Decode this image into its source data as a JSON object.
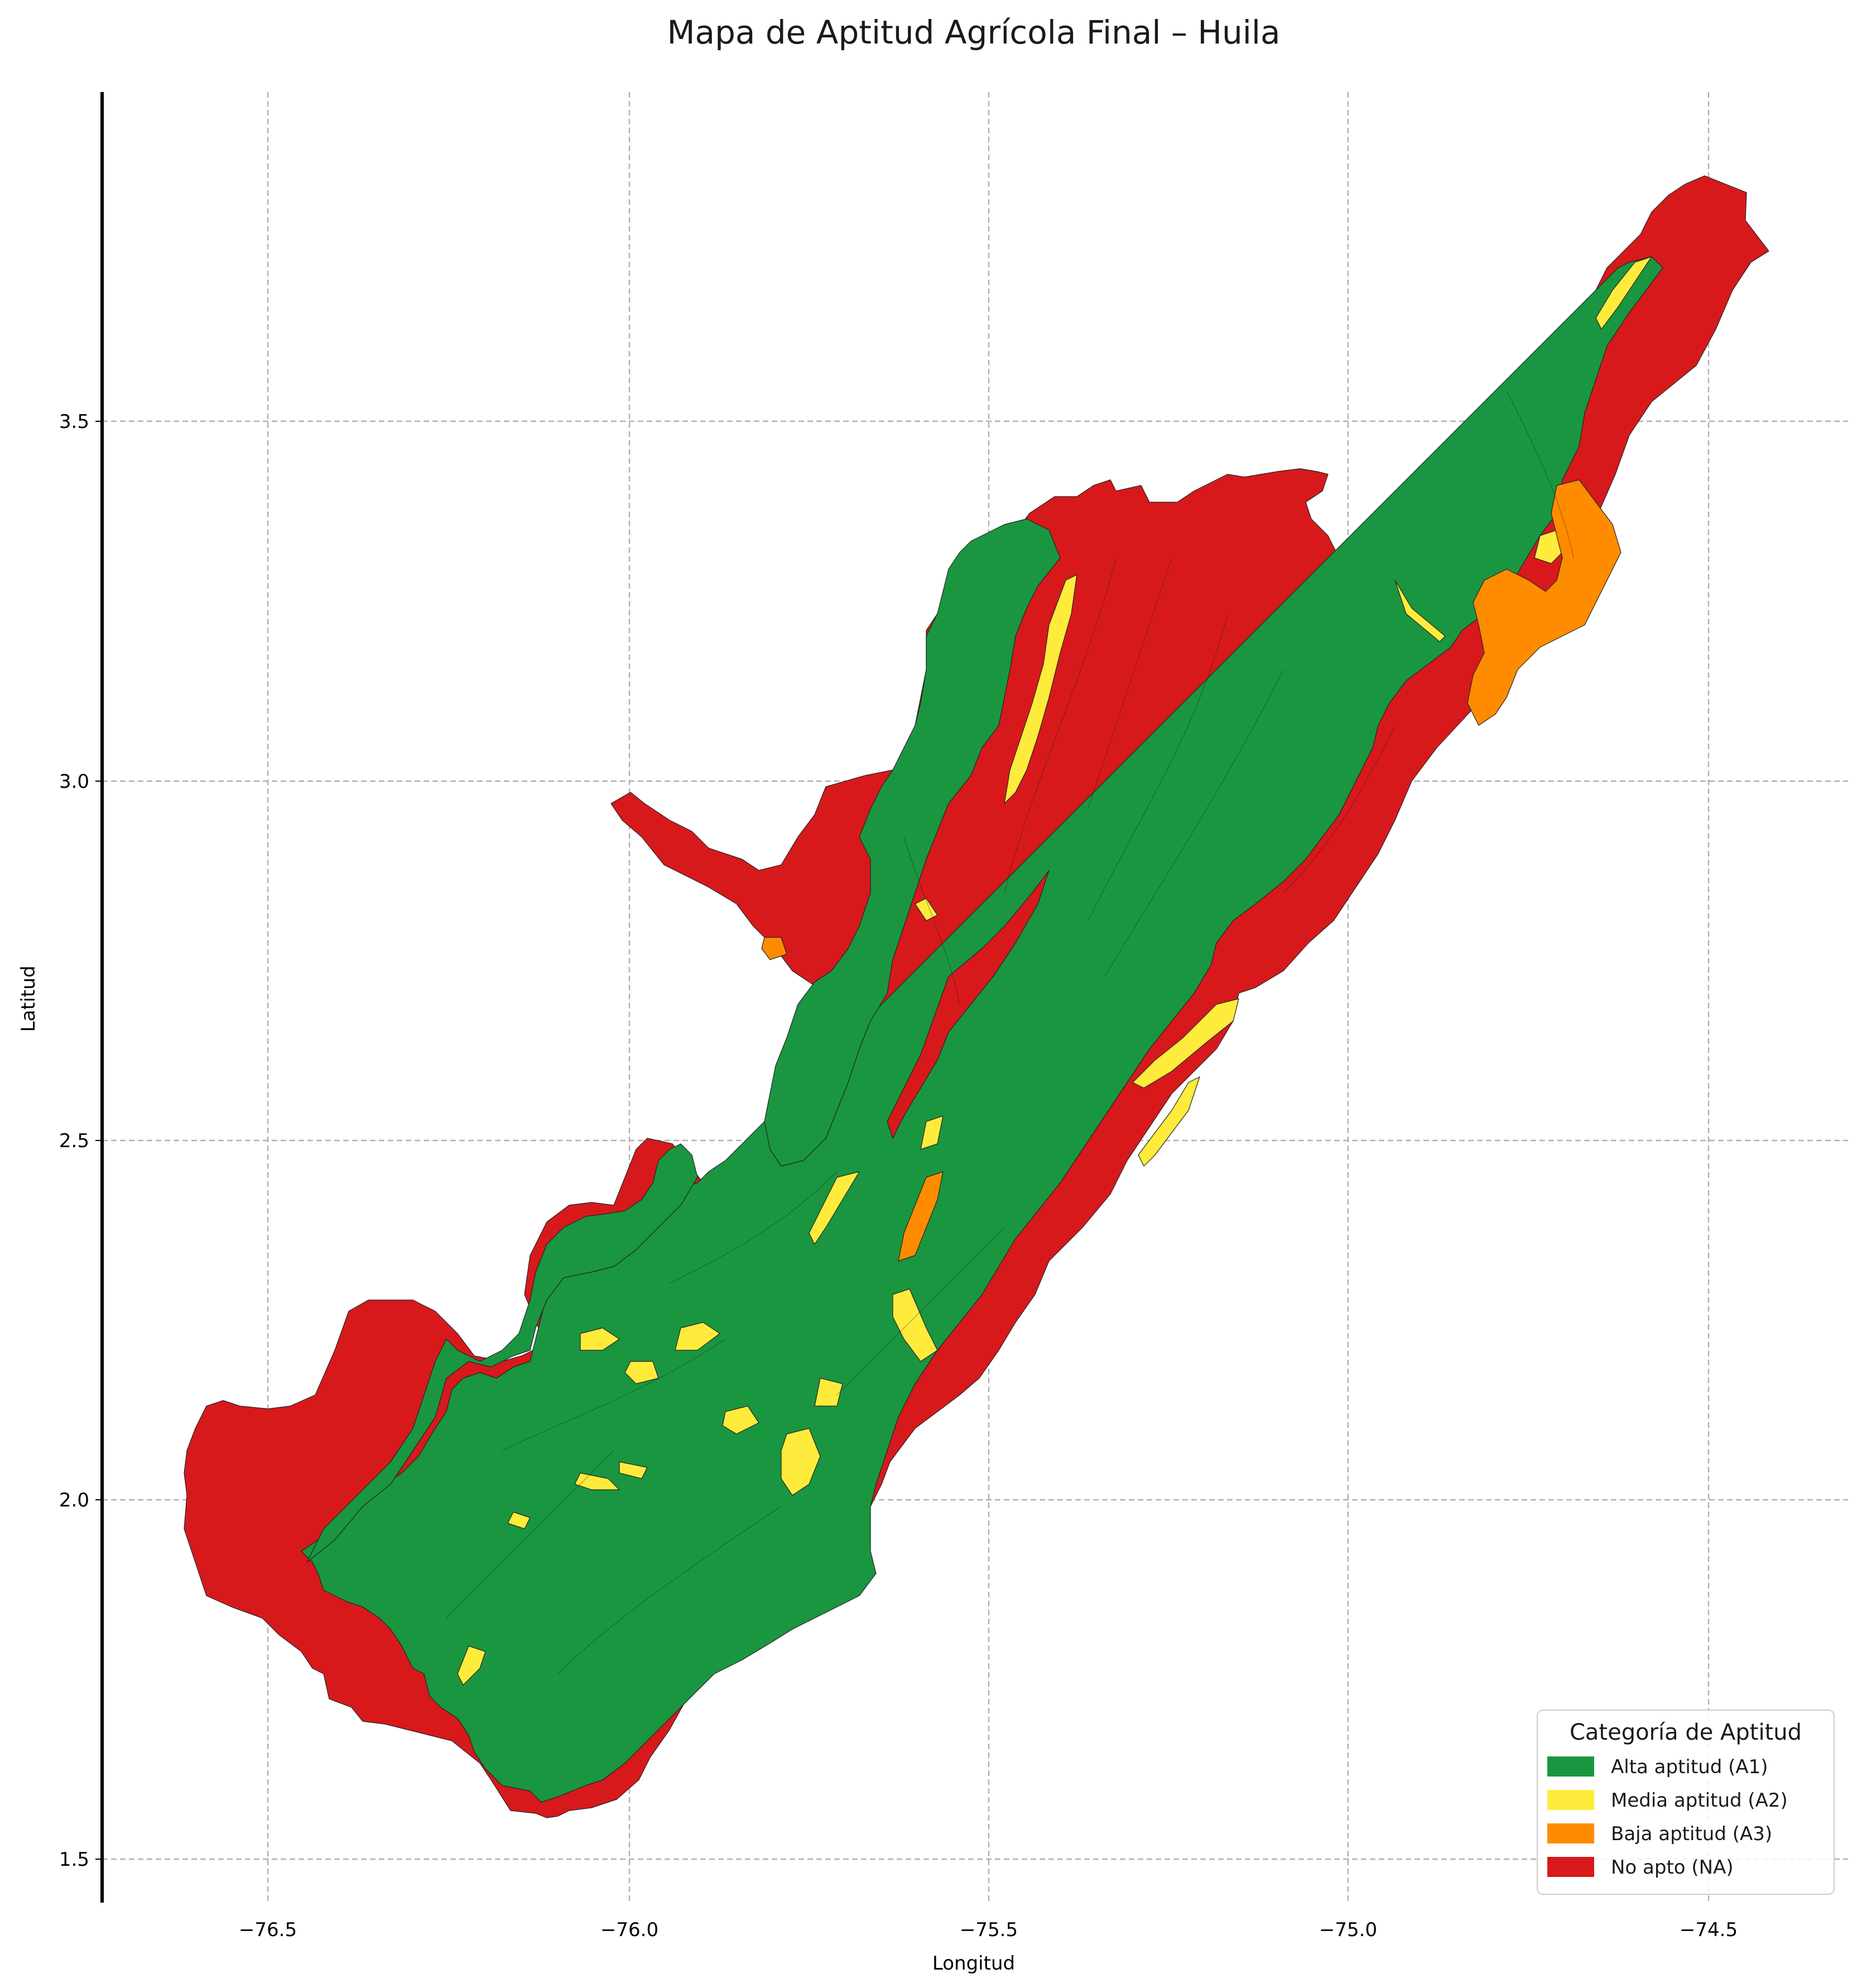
{
  "title": "Mapa de Aptitud Agrícola Final – Huila",
  "xlabel": "Longitud",
  "ylabel": "Latitud",
  "x_ticks": [
    "−76.5",
    "−76.0",
    "−75.5",
    "−75.0",
    "−74.5"
  ],
  "y_ticks": [
    "3.5",
    "3.0",
    "2.5",
    "2.0",
    "1.5"
  ],
  "legend": {
    "title": "Categoría de Aptitud",
    "items": [
      {
        "label": "Alta aptitud (A1)",
        "color": "#1a9641"
      },
      {
        "label": "Media aptitud (A2)",
        "color": "#ffeb3b"
      },
      {
        "label": "Baja aptitud (A3)",
        "color": "#ff8c00"
      },
      {
        "label": "No apto (NA)",
        "color": "#d7191c"
      }
    ],
    "location": "lower right"
  },
  "colors": {
    "A1": "#1a9641",
    "A2": "#ffeb3b",
    "A3": "#ff8c00",
    "NA": "#d7191c"
  },
  "grid": true
}
